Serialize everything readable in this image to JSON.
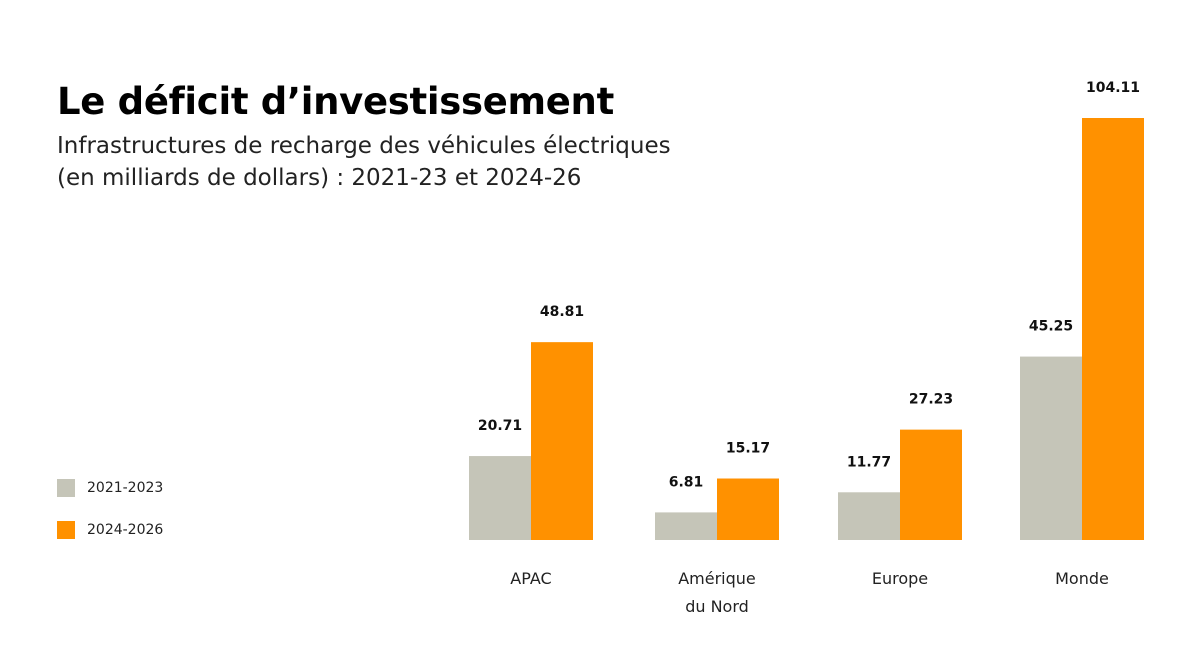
{
  "title": "Le déficit d’investissement",
  "subtitle_line1": "Infrastructures de recharge des véhicules électriques",
  "subtitle_line2": "(en milliards de dollars) : 2021-23 et 2024-26",
  "chart_data": {
    "type": "bar",
    "title": "Le déficit d’investissement",
    "xlabel": "",
    "ylabel": "",
    "categories": [
      [
        "APAC"
      ],
      [
        "Amérique",
        "du Nord"
      ],
      [
        "Europe"
      ],
      [
        "Monde"
      ]
    ],
    "series": [
      {
        "name": "2021-2023",
        "color": "#c5c5b8",
        "values": [
          20.71,
          6.81,
          11.77,
          45.25
        ],
        "labels": [
          "20.71",
          "6.81",
          "11.77",
          "45.25"
        ]
      },
      {
        "name": "2024-2026",
        "color": "#ff9100",
        "values": [
          48.81,
          15.17,
          27.23,
          104.11
        ],
        "labels": [
          "48.81",
          "15.17",
          "27.23",
          "104.11"
        ]
      }
    ],
    "ylim": [
      0,
      104.11
    ],
    "grid": false,
    "legend_position": "left"
  }
}
